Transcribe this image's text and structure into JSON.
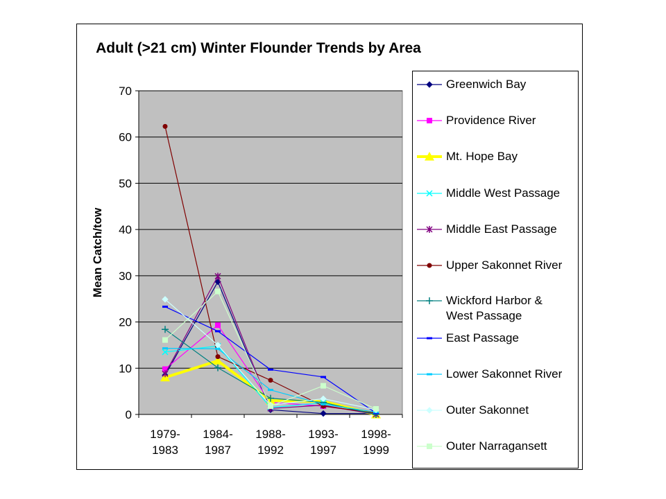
{
  "chart_data": {
    "type": "line",
    "title": "Adult (>21 cm) Winter Flounder Trends by Area",
    "xlabel": "",
    "ylabel": "Mean Catch/tow",
    "ylim": [
      0,
      70
    ],
    "yticks": [
      0,
      10,
      20,
      30,
      40,
      50,
      60,
      70
    ],
    "grid": "horizontal",
    "plot_background": "#c0c0c0",
    "legend_position": "right",
    "categories": [
      "1979-\n1983",
      "1984-\n1987",
      "1988-\n1992",
      "1993-\n1997",
      "1998-\n1999"
    ],
    "series": [
      {
        "name": "Greenwich Bay",
        "color": "#000080",
        "marker": "diamond",
        "values": [
          8.5,
          28.7,
          1.0,
          0.2,
          0.2
        ]
      },
      {
        "name": "Providence River",
        "color": "#ff00ff",
        "marker": "square",
        "values": [
          9.8,
          19.3,
          2.6,
          1.8,
          0.2
        ]
      },
      {
        "name": "Mt. Hope Bay",
        "color": "#ffff00",
        "marker": "triangle",
        "thick": true,
        "values": [
          8.0,
          11.6,
          3.0,
          2.8,
          0.0
        ]
      },
      {
        "name": "Middle West Passage",
        "color": "#00ffff",
        "marker": "x",
        "values": [
          13.5,
          14.8,
          1.5,
          2.5,
          0.0
        ]
      },
      {
        "name": "Middle East Passage",
        "color": "#800080",
        "marker": "star",
        "values": [
          8.8,
          29.9,
          1.3,
          2.0,
          0.0
        ]
      },
      {
        "name": "Upper Sakonnet River",
        "color": "#800000",
        "marker": "circle",
        "values": [
          62.3,
          12.5,
          7.4,
          1.8,
          0.3
        ]
      },
      {
        "name": "Wickford Harbor &\nWest Passage",
        "color": "#008080",
        "marker": "plus",
        "values": [
          18.4,
          10.1,
          3.5,
          2.6,
          0.0
        ]
      },
      {
        "name": "East Passage",
        "color": "#0000ff",
        "marker": "dash",
        "values": [
          23.3,
          18.0,
          9.7,
          8.1,
          0.3
        ]
      },
      {
        "name": "Lower Sakonnet River",
        "color": "#00ccff",
        "marker": "dash",
        "values": [
          14.3,
          14.2,
          5.3,
          2.2,
          0.5
        ]
      },
      {
        "name": "Outer Sakonnet",
        "color": "#ccffff",
        "marker": "diamond",
        "values": [
          24.9,
          15.0,
          2.0,
          3.4,
          1.0
        ]
      },
      {
        "name": "Outer Narragansett",
        "color": "#ccffcc",
        "marker": "square",
        "values": [
          16.1,
          26.6,
          1.8,
          6.2,
          1.2
        ]
      }
    ]
  }
}
